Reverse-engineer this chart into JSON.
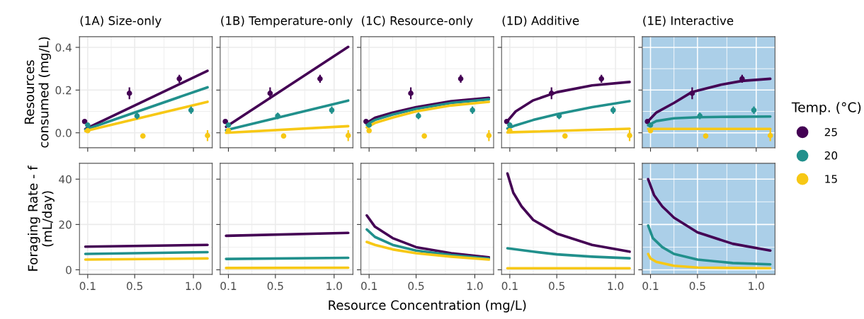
{
  "chart_data": [
    {
      "type": "line",
      "title": "(1A) Size-only",
      "ylabel": "Resources\nconsumed (mg/L)",
      "xlim": [
        0.03,
        1.16
      ],
      "xticks": [
        0.1,
        0.5,
        1.0
      ],
      "ylim": [
        -0.07,
        0.45
      ],
      "yticks": [
        {
          "value": 0,
          "label": "0.0"
        },
        {
          "value": 0.2,
          "label": "0.2"
        },
        {
          "value": 0.4,
          "label": "0.4"
        }
      ],
      "grid": true,
      "tick_labels": "y",
      "series": [
        {
          "color": "#440154",
          "x": [
            0.08,
            1.12
          ],
          "values": [
            0.018,
            0.29
          ]
        },
        {
          "color": "#21908c",
          "x": [
            0.08,
            1.12
          ],
          "values": [
            0.015,
            0.213
          ]
        },
        {
          "color": "#f7c815",
          "x": [
            0.08,
            1.12
          ],
          "values": [
            0.008,
            0.145
          ]
        },
        {
          "type": "scatter",
          "marker": "circle",
          "color": "#440154",
          "x": [
            0.074,
            0.455,
            0.88
          ],
          "values": [
            0.053,
            0.185,
            0.253
          ],
          "errors": [
            null,
            0.024,
            0.015
          ]
        },
        {
          "type": "scatter",
          "marker": "circle",
          "color": "#21908c",
          "x": [
            0.1,
            0.52,
            0.98
          ],
          "values": [
            0.036,
            0.079,
            0.106
          ],
          "errors": [
            null,
            0.012,
            0.014
          ]
        },
        {
          "type": "scatter",
          "marker": "circle",
          "color": "#f7c815",
          "x": [
            0.1,
            0.57,
            1.12
          ],
          "values": [
            0.01,
            -0.015,
            -0.013
          ],
          "errors": [
            null,
            0.008,
            0.022
          ]
        }
      ]
    },
    {
      "type": "line",
      "title": "(1B) Temperature-only",
      "xlim": [
        0.03,
        1.16
      ],
      "xticks": [
        0.1,
        0.5,
        1.0
      ],
      "ylim": [
        -0.07,
        0.45
      ],
      "yticks": [
        0,
        0.2,
        0.4
      ],
      "grid": true,
      "tick_labels": false,
      "series": [
        {
          "color": "#440154",
          "x": [
            0.08,
            1.12
          ],
          "values": [
            0.028,
            0.402
          ]
        },
        {
          "color": "#21908c",
          "x": [
            0.08,
            1.12
          ],
          "values": [
            0.012,
            0.151
          ]
        },
        {
          "color": "#f7c815",
          "x": [
            0.08,
            1.12
          ],
          "values": [
            0.0,
            0.031
          ]
        },
        {
          "type": "scatter",
          "marker": "circle",
          "color": "#440154",
          "x": [
            0.074,
            0.455,
            0.88
          ],
          "values": [
            0.053,
            0.185,
            0.253
          ],
          "errors": [
            null,
            0.024,
            0.015
          ]
        },
        {
          "type": "scatter",
          "marker": "circle",
          "color": "#21908c",
          "x": [
            0.1,
            0.52,
            0.98
          ],
          "values": [
            0.036,
            0.079,
            0.106
          ],
          "errors": [
            null,
            0.012,
            0.014
          ]
        },
        {
          "type": "scatter",
          "marker": "circle",
          "color": "#f7c815",
          "x": [
            0.1,
            0.57,
            1.12
          ],
          "values": [
            0.01,
            -0.015,
            -0.013
          ],
          "errors": [
            null,
            0.008,
            0.022
          ]
        }
      ]
    },
    {
      "type": "line",
      "title": "(1C) Resource-only",
      "xlim": [
        0.03,
        1.16
      ],
      "xticks": [
        0.1,
        0.5,
        1.0
      ],
      "ylim": [
        -0.07,
        0.45
      ],
      "yticks": [
        0,
        0.2,
        0.4
      ],
      "grid": true,
      "tick_labels": false,
      "series": [
        {
          "color": "#440154",
          "x": [
            0.08,
            0.15,
            0.3,
            0.5,
            0.8,
            1.12
          ],
          "values": [
            0.046,
            0.07,
            0.094,
            0.12,
            0.148,
            0.164
          ]
        },
        {
          "color": "#21908c",
          "x": [
            0.08,
            0.15,
            0.3,
            0.5,
            0.8,
            1.12
          ],
          "values": [
            0.038,
            0.06,
            0.085,
            0.112,
            0.14,
            0.157
          ]
        },
        {
          "color": "#f7c815",
          "x": [
            0.08,
            0.15,
            0.3,
            0.5,
            0.8,
            1.12
          ],
          "values": [
            0.025,
            0.046,
            0.071,
            0.1,
            0.128,
            0.145
          ]
        },
        {
          "type": "scatter",
          "marker": "circle",
          "color": "#440154",
          "x": [
            0.074,
            0.455,
            0.88
          ],
          "values": [
            0.053,
            0.185,
            0.253
          ],
          "errors": [
            null,
            0.024,
            0.015
          ]
        },
        {
          "type": "scatter",
          "marker": "circle",
          "color": "#21908c",
          "x": [
            0.1,
            0.52,
            0.98
          ],
          "values": [
            0.036,
            0.079,
            0.106
          ],
          "errors": [
            null,
            0.012,
            0.014
          ]
        },
        {
          "type": "scatter",
          "marker": "circle",
          "color": "#f7c815",
          "x": [
            0.1,
            0.57,
            1.12
          ],
          "values": [
            0.01,
            -0.015,
            -0.013
          ],
          "errors": [
            null,
            0.008,
            0.022
          ]
        }
      ]
    },
    {
      "type": "line",
      "title": "(1D) Additive",
      "xlim": [
        0.03,
        1.16
      ],
      "xticks": [
        0.1,
        0.5,
        1.0
      ],
      "ylim": [
        -0.07,
        0.45
      ],
      "yticks": [
        0,
        0.2,
        0.4
      ],
      "grid": true,
      "tick_labels": false,
      "series": [
        {
          "color": "#440154",
          "x": [
            0.08,
            0.15,
            0.3,
            0.5,
            0.8,
            1.12
          ],
          "values": [
            0.055,
            0.1,
            0.152,
            0.19,
            0.222,
            0.238
          ]
        },
        {
          "color": "#21908c",
          "x": [
            0.08,
            0.15,
            0.3,
            0.5,
            0.8,
            1.12
          ],
          "values": [
            0.02,
            0.035,
            0.06,
            0.087,
            0.12,
            0.148
          ]
        },
        {
          "color": "#f7c815",
          "x": [
            0.08,
            1.12
          ],
          "values": [
            0.002,
            0.019
          ]
        },
        {
          "type": "scatter",
          "marker": "circle",
          "color": "#440154",
          "x": [
            0.074,
            0.455,
            0.88
          ],
          "values": [
            0.053,
            0.185,
            0.253
          ],
          "errors": [
            null,
            0.024,
            0.015
          ]
        },
        {
          "type": "scatter",
          "marker": "circle",
          "color": "#21908c",
          "x": [
            0.1,
            0.52,
            0.98
          ],
          "values": [
            0.036,
            0.079,
            0.106
          ],
          "errors": [
            null,
            0.012,
            0.014
          ]
        },
        {
          "type": "scatter",
          "marker": "circle",
          "color": "#f7c815",
          "x": [
            0.1,
            0.57,
            1.12
          ],
          "values": [
            0.01,
            -0.015,
            -0.013
          ],
          "errors": [
            null,
            0.008,
            0.022
          ]
        }
      ]
    },
    {
      "type": "line",
      "title": "(1E) Interactive",
      "xlim": [
        0.03,
        1.16
      ],
      "xticks": [
        0.1,
        0.5,
        1.0
      ],
      "ylim": [
        -0.07,
        0.45
      ],
      "yticks": [
        0,
        0.2,
        0.4
      ],
      "grid": true,
      "tick_labels": false,
      "legend": "right",
      "legend_title": "Temp. (°C)",
      "bands": [
        {
          "axis": "x",
          "from": 0.03,
          "to": 1.16,
          "color": "#abcfe8"
        }
      ],
      "series": [
        {
          "color": "#440154",
          "x": [
            0.08,
            0.15,
            0.3,
            0.45,
            0.7,
            0.88,
            1.12
          ],
          "values": [
            0.055,
            0.095,
            0.14,
            0.19,
            0.225,
            0.243,
            0.253
          ]
        },
        {
          "color": "#21908c",
          "x": [
            0.08,
            0.15,
            0.3,
            0.5,
            0.8,
            1.12
          ],
          "values": [
            0.035,
            0.055,
            0.068,
            0.073,
            0.075,
            0.076
          ]
        },
        {
          "color": "#f7c815",
          "x": [
            0.08,
            1.12
          ],
          "values": [
            0.018,
            0.018
          ]
        },
        {
          "type": "scatter",
          "marker": "circle",
          "name": "25",
          "color": "#440154",
          "x": [
            0.074,
            0.455,
            0.88
          ],
          "values": [
            0.053,
            0.185,
            0.253
          ],
          "errors": [
            null,
            0.024,
            0.015
          ]
        },
        {
          "type": "scatter",
          "marker": "circle",
          "name": "20",
          "color": "#21908c",
          "x": [
            0.1,
            0.52,
            0.98
          ],
          "values": [
            0.036,
            0.079,
            0.106
          ],
          "errors": [
            null,
            0.012,
            0.014
          ]
        },
        {
          "type": "scatter",
          "marker": "circle",
          "name": "15",
          "color": "#f7c815",
          "x": [
            0.1,
            0.57,
            1.12
          ],
          "values": [
            0.01,
            -0.015,
            -0.013
          ],
          "errors": [
            null,
            0.008,
            0.022
          ]
        }
      ]
    },
    {
      "type": "line",
      "ylabel": "Foraging Rate - f\n(mL/day)",
      "xlim": [
        0.03,
        1.16
      ],
      "xticks": [
        {
          "value": 0.1,
          "label": "0.1"
        },
        {
          "value": 0.5,
          "label": "0.5"
        },
        {
          "value": 1.0,
          "label": "1.0"
        }
      ],
      "ylim": [
        -2,
        47
      ],
      "yticks": [
        0,
        20,
        40
      ],
      "grid": true,
      "series": [
        {
          "color": "#440154",
          "x": [
            0.08,
            1.12
          ],
          "values": [
            10.2,
            11.0
          ]
        },
        {
          "color": "#21908c",
          "x": [
            0.08,
            1.12
          ],
          "values": [
            7.0,
            7.8
          ]
        },
        {
          "color": "#f7c815",
          "x": [
            0.08,
            1.12
          ],
          "values": [
            4.5,
            5.0
          ]
        }
      ]
    },
    {
      "type": "line",
      "xlim": [
        0.03,
        1.16
      ],
      "xticks": [
        {
          "value": 0.1,
          "label": "0.1"
        },
        {
          "value": 0.5,
          "label": "0.5"
        },
        {
          "value": 1.0,
          "label": "1.0"
        }
      ],
      "ylim": [
        -2,
        47
      ],
      "yticks": [
        0,
        20,
        40
      ],
      "grid": true,
      "tick_labels": "x",
      "series": [
        {
          "color": "#440154",
          "x": [
            0.08,
            1.12
          ],
          "values": [
            15.0,
            16.3
          ]
        },
        {
          "color": "#21908c",
          "x": [
            0.08,
            1.12
          ],
          "values": [
            4.8,
            5.3
          ]
        },
        {
          "color": "#f7c815",
          "x": [
            0.08,
            1.12
          ],
          "values": [
            0.8,
            0.9
          ]
        }
      ]
    },
    {
      "type": "line",
      "xlabel": "Resource Concentration (mg/L)",
      "xlim": [
        0.03,
        1.16
      ],
      "xticks": [
        {
          "value": 0.1,
          "label": "0.1"
        },
        {
          "value": 0.5,
          "label": "0.5"
        },
        {
          "value": 1.0,
          "label": "1.0"
        }
      ],
      "ylim": [
        -2,
        47
      ],
      "yticks": [
        0,
        20,
        40
      ],
      "grid": true,
      "tick_labels": "x",
      "series": [
        {
          "color": "#440154",
          "x": [
            0.08,
            0.15,
            0.3,
            0.5,
            0.8,
            1.12
          ],
          "values": [
            24,
            19,
            14,
            10,
            7.3,
            5.5
          ]
        },
        {
          "color": "#21908c",
          "x": [
            0.08,
            0.15,
            0.3,
            0.5,
            0.8,
            1.12
          ],
          "values": [
            17.8,
            14.5,
            11,
            8.5,
            6.5,
            5
          ]
        },
        {
          "color": "#f7c815",
          "x": [
            0.08,
            0.15,
            0.3,
            0.5,
            0.8,
            1.12
          ],
          "values": [
            12.3,
            11,
            9,
            7.3,
            5.8,
            4.5
          ]
        }
      ]
    },
    {
      "type": "line",
      "xlim": [
        0.03,
        1.16
      ],
      "xticks": [
        {
          "value": 0.1,
          "label": "0.1"
        },
        {
          "value": 0.5,
          "label": "0.5"
        },
        {
          "value": 1.0,
          "label": "1.0"
        }
      ],
      "ylim": [
        -2,
        47
      ],
      "yticks": [
        0,
        20,
        40
      ],
      "grid": true,
      "tick_labels": "x",
      "series": [
        {
          "color": "#440154",
          "x": [
            0.08,
            0.13,
            0.2,
            0.3,
            0.5,
            0.8,
            1.12
          ],
          "values": [
            42.5,
            34,
            28,
            22,
            16,
            11,
            8
          ]
        },
        {
          "color": "#21908c",
          "x": [
            0.08,
            0.3,
            0.5,
            0.8,
            1.12
          ],
          "values": [
            9.5,
            8,
            6.8,
            5.8,
            5.1
          ]
        },
        {
          "color": "#f7c815",
          "x": [
            0.08,
            1.12
          ],
          "values": [
            0.7,
            0.7
          ]
        }
      ]
    },
    {
      "type": "line",
      "xlim": [
        0.03,
        1.16
      ],
      "xticks": [
        {
          "value": 0.1,
          "label": "0.1"
        },
        {
          "value": 0.5,
          "label": "0.5"
        },
        {
          "value": 1.0,
          "label": "1.0"
        }
      ],
      "ylim": [
        -2,
        47
      ],
      "yticks": [
        0,
        20,
        40
      ],
      "grid": true,
      "tick_labels": "x",
      "bands": [
        {
          "axis": "x",
          "from": 0.03,
          "to": 1.16,
          "color": "#abcfe8"
        }
      ],
      "series": [
        {
          "color": "#440154",
          "x": [
            0.08,
            0.13,
            0.2,
            0.3,
            0.5,
            0.8,
            1.12
          ],
          "values": [
            40,
            33,
            28,
            23,
            16.5,
            11.5,
            8.5
          ]
        },
        {
          "color": "#21908c",
          "x": [
            0.08,
            0.12,
            0.2,
            0.3,
            0.5,
            0.8,
            1.12
          ],
          "values": [
            19.5,
            14,
            10,
            7,
            4.5,
            3,
            2.4
          ]
        },
        {
          "color": "#f7c815",
          "x": [
            0.08,
            0.1,
            0.15,
            0.3,
            0.5,
            0.8,
            1.12
          ],
          "values": [
            7,
            5,
            3.5,
            1.8,
            1.0,
            0.8,
            0.7
          ]
        }
      ]
    }
  ]
}
